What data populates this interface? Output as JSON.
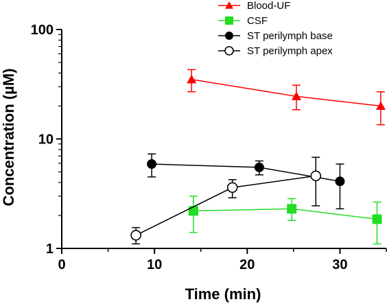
{
  "chart_data": {
    "type": "line",
    "title": "",
    "xlabel": "Time (min)",
    "ylabel": "Concentration (µM)",
    "xlim": [
      0,
      35
    ],
    "ylim": [
      1,
      100
    ],
    "yscale": "log",
    "x_ticks": [
      0,
      10,
      20,
      30
    ],
    "x_tick_labels": [
      "0",
      "10",
      "20",
      "30"
    ],
    "y_ticks": [
      1,
      10,
      100
    ],
    "y_tick_labels": [
      "1",
      "10",
      "100"
    ],
    "grid": false,
    "legend_position": "top-right",
    "series": [
      {
        "name": "Blood-UF",
        "color": "#ff0000",
        "marker": "triangle",
        "x": [
          14,
          25.3,
          34.4
        ],
        "y": [
          35,
          24.5,
          20
        ],
        "err_low": [
          27,
          18.5,
          13.5
        ],
        "err_high": [
          43,
          31,
          27
        ]
      },
      {
        "name": "CSF",
        "color": "#22dd22",
        "marker": "square",
        "x": [
          14.2,
          24.8,
          34
        ],
        "y": [
          2.2,
          2.3,
          1.85
        ],
        "err_low": [
          1.4,
          1.8,
          1.1
        ],
        "err_high": [
          3,
          2.85,
          2.65
        ]
      },
      {
        "name": "ST perilymph base",
        "color": "#000000",
        "marker": "circle-filled",
        "x": [
          9.7,
          21.3,
          30
        ],
        "y": [
          5.9,
          5.5,
          4.1
        ],
        "err_low": [
          4.5,
          4.7,
          2.3
        ],
        "err_high": [
          7.3,
          6.3,
          5.9
        ]
      },
      {
        "name": "ST perilymph apex",
        "color": "#000000",
        "marker": "circle-open",
        "x": [
          8,
          18.4,
          27.4
        ],
        "y": [
          1.32,
          3.6,
          4.6
        ],
        "err_low": [
          1.1,
          2.9,
          2.45
        ],
        "err_high": [
          1.55,
          4.25,
          6.8
        ]
      }
    ]
  }
}
